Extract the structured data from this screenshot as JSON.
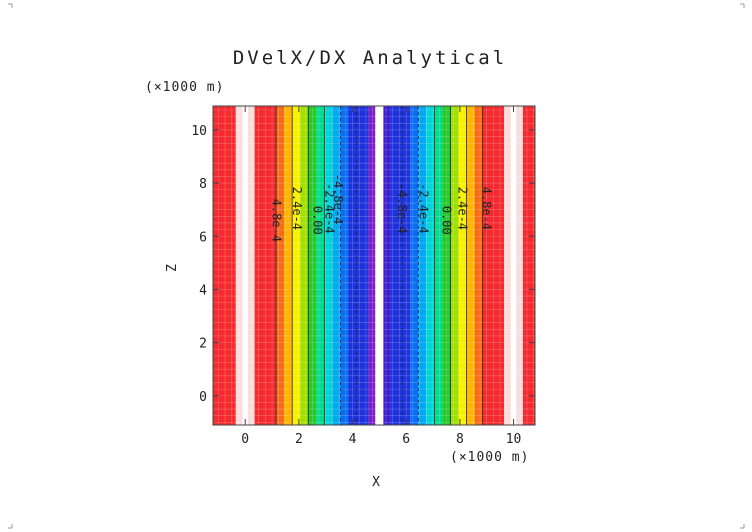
{
  "chart_data": {
    "type": "heatmap",
    "title": "DVelX/DX Analytical",
    "xlabel": "X",
    "ylabel": "Z",
    "x_unit_label": "(×1000 m)",
    "y_unit_label": "(×1000 m)",
    "xlim": [
      -1.2,
      10.8
    ],
    "ylim": [
      -1.1,
      10.9
    ],
    "x_ticks": [
      0,
      2,
      4,
      6,
      8,
      10
    ],
    "y_ticks": [
      0,
      2,
      4,
      6,
      8,
      10
    ],
    "x_tick_labels": [
      "0",
      "2",
      "4",
      "6",
      "8",
      "10"
    ],
    "y_tick_labels": [
      "0",
      "2",
      "4",
      "6",
      "8",
      "10"
    ],
    "field_variation": "x-only (vertical bands)",
    "bands": [
      {
        "x0": -1.2,
        "x1": -0.35,
        "color": "#f52a2e"
      },
      {
        "x0": -0.35,
        "x1": -0.1,
        "color": "#f9dcdc"
      },
      {
        "x0": -0.1,
        "x1": 0.1,
        "color": "#ffffff"
      },
      {
        "x0": 0.1,
        "x1": 0.35,
        "color": "#f9dcdc"
      },
      {
        "x0": 0.35,
        "x1": 1.15,
        "color": "#f52a2e"
      },
      {
        "x0": 1.15,
        "x1": 1.45,
        "color": "#f76a18"
      },
      {
        "x0": 1.45,
        "x1": 1.75,
        "color": "#ffb400"
      },
      {
        "x0": 1.75,
        "x1": 2.05,
        "color": "#f7f000"
      },
      {
        "x0": 2.05,
        "x1": 2.35,
        "color": "#9fe000"
      },
      {
        "x0": 2.35,
        "x1": 2.65,
        "color": "#28c828"
      },
      {
        "x0": 2.65,
        "x1": 2.95,
        "color": "#00dc8c"
      },
      {
        "x0": 2.95,
        "x1": 3.25,
        "color": "#00d4d4"
      },
      {
        "x0": 3.25,
        "x1": 3.55,
        "color": "#00a8f0"
      },
      {
        "x0": 3.55,
        "x1": 3.85,
        "color": "#0a6cf2"
      },
      {
        "x0": 3.85,
        "x1": 4.6,
        "color": "#1e32dc"
      },
      {
        "x0": 4.6,
        "x1": 4.85,
        "color": "#7a1fc8"
      },
      {
        "x0": 4.85,
        "x1": 5.15,
        "color": "#ffffff"
      },
      {
        "x0": 5.15,
        "x1": 5.4,
        "color": "#3a1bd0"
      },
      {
        "x0": 5.4,
        "x1": 6.15,
        "color": "#1e32dc"
      },
      {
        "x0": 6.15,
        "x1": 6.45,
        "color": "#0a6cf2"
      },
      {
        "x0": 6.45,
        "x1": 6.75,
        "color": "#00a8f0"
      },
      {
        "x0": 6.75,
        "x1": 7.05,
        "color": "#00d4d4"
      },
      {
        "x0": 7.05,
        "x1": 7.35,
        "color": "#00dc8c"
      },
      {
        "x0": 7.35,
        "x1": 7.65,
        "color": "#28c828"
      },
      {
        "x0": 7.65,
        "x1": 7.95,
        "color": "#9fe000"
      },
      {
        "x0": 7.95,
        "x1": 8.25,
        "color": "#f7f000"
      },
      {
        "x0": 8.25,
        "x1": 8.55,
        "color": "#ffb400"
      },
      {
        "x0": 8.55,
        "x1": 8.85,
        "color": "#f76a18"
      },
      {
        "x0": 8.85,
        "x1": 9.65,
        "color": "#f52a2e"
      },
      {
        "x0": 9.65,
        "x1": 9.9,
        "color": "#f9dcdc"
      },
      {
        "x0": 9.9,
        "x1": 10.1,
        "color": "#ffffff"
      },
      {
        "x0": 10.1,
        "x1": 10.35,
        "color": "#f9dcdc"
      },
      {
        "x0": 10.35,
        "x1": 10.8,
        "color": "#f52a2e"
      }
    ],
    "contours": [
      {
        "x": 1.15,
        "dash": false
      },
      {
        "x": 1.75,
        "dash": false
      },
      {
        "x": 2.35,
        "dash": false
      },
      {
        "x": 2.95,
        "dash": false
      },
      {
        "x": 3.55,
        "dash": true
      },
      {
        "x": 4.15,
        "dash": true
      },
      {
        "x": 5.85,
        "dash": true
      },
      {
        "x": 6.45,
        "dash": true
      },
      {
        "x": 7.05,
        "dash": false
      },
      {
        "x": 7.65,
        "dash": false
      },
      {
        "x": 8.25,
        "dash": false
      },
      {
        "x": 8.85,
        "dash": false
      }
    ],
    "contour_labels": [
      {
        "text": "4.8e-4",
        "x": 1.02,
        "y": 6.6
      },
      {
        "text": "2.4e-4",
        "x": 1.78,
        "y": 7.05
      },
      {
        "text": "0.00",
        "x": 2.55,
        "y": 6.6
      },
      {
        "text": "-2.4e-4",
        "x": 3.0,
        "y": 7.05
      },
      {
        "text": "-4.8e-4",
        "x": 3.3,
        "y": 7.4
      },
      {
        "text": "-4.8e-4",
        "x": 5.7,
        "y": 7.05
      },
      {
        "text": "-2.4e-4",
        "x": 6.5,
        "y": 7.05
      },
      {
        "text": "0.00",
        "x": 7.35,
        "y": 6.6
      },
      {
        "text": "2.4e-4",
        "x": 7.95,
        "y": 7.05
      },
      {
        "text": "4.8e-4",
        "x": 8.85,
        "y": 7.05
      }
    ],
    "grid": true
  }
}
